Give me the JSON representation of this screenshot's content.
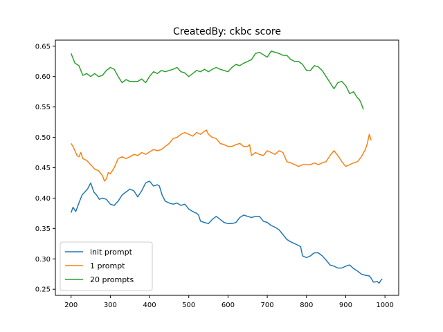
{
  "chart_data": {
    "type": "line",
    "title": "CreatedBy: ckbc score",
    "xlabel": "",
    "ylabel": "",
    "xlim": [
      160,
      1035
    ],
    "ylim": [
      0.24,
      0.66
    ],
    "xticks": [
      200,
      300,
      400,
      500,
      600,
      700,
      800,
      900,
      1000
    ],
    "yticks": [
      0.25,
      0.3,
      0.35,
      0.4,
      0.45,
      0.5,
      0.55,
      0.6,
      0.65
    ],
    "ytick_labels": [
      "0.25",
      "0.30",
      "0.35",
      "0.40",
      "0.45",
      "0.50",
      "0.55",
      "0.60",
      "0.65"
    ],
    "grid": false,
    "legend_position": "lower-left",
    "series": [
      {
        "name": "init prompt",
        "color": "#1f77b4",
        "points": [
          [
            200,
            0.376
          ],
          [
            205,
            0.385
          ],
          [
            212,
            0.378
          ],
          [
            220,
            0.392
          ],
          [
            228,
            0.405
          ],
          [
            235,
            0.41
          ],
          [
            242,
            0.415
          ],
          [
            250,
            0.425
          ],
          [
            258,
            0.41
          ],
          [
            265,
            0.405
          ],
          [
            272,
            0.398
          ],
          [
            280,
            0.4
          ],
          [
            290,
            0.398
          ],
          [
            300,
            0.39
          ],
          [
            310,
            0.388
          ],
          [
            320,
            0.395
          ],
          [
            330,
            0.405
          ],
          [
            340,
            0.41
          ],
          [
            350,
            0.415
          ],
          [
            360,
            0.412
          ],
          [
            370,
            0.402
          ],
          [
            380,
            0.412
          ],
          [
            390,
            0.425
          ],
          [
            400,
            0.428
          ],
          [
            410,
            0.42
          ],
          [
            420,
            0.422
          ],
          [
            425,
            0.42
          ],
          [
            432,
            0.405
          ],
          [
            440,
            0.395
          ],
          [
            450,
            0.392
          ],
          [
            460,
            0.39
          ],
          [
            470,
            0.392
          ],
          [
            480,
            0.388
          ],
          [
            490,
            0.39
          ],
          [
            500,
            0.382
          ],
          [
            510,
            0.378
          ],
          [
            520,
            0.375
          ],
          [
            525,
            0.372
          ],
          [
            530,
            0.362
          ],
          [
            540,
            0.36
          ],
          [
            550,
            0.358
          ],
          [
            560,
            0.365
          ],
          [
            570,
            0.37
          ],
          [
            580,
            0.365
          ],
          [
            590,
            0.36
          ],
          [
            600,
            0.358
          ],
          [
            610,
            0.358
          ],
          [
            620,
            0.36
          ],
          [
            630,
            0.368
          ],
          [
            640,
            0.372
          ],
          [
            650,
            0.37
          ],
          [
            660,
            0.368
          ],
          [
            670,
            0.37
          ],
          [
            680,
            0.37
          ],
          [
            690,
            0.362
          ],
          [
            700,
            0.36
          ],
          [
            710,
            0.355
          ],
          [
            720,
            0.352
          ],
          [
            730,
            0.348
          ],
          [
            740,
            0.34
          ],
          [
            750,
            0.332
          ],
          [
            760,
            0.328
          ],
          [
            770,
            0.325
          ],
          [
            780,
            0.322
          ],
          [
            785,
            0.32
          ],
          [
            790,
            0.305
          ],
          [
            800,
            0.302
          ],
          [
            810,
            0.305
          ],
          [
            820,
            0.31
          ],
          [
            830,
            0.31
          ],
          [
            840,
            0.305
          ],
          [
            850,
            0.298
          ],
          [
            860,
            0.29
          ],
          [
            870,
            0.288
          ],
          [
            880,
            0.285
          ],
          [
            890,
            0.285
          ],
          [
            900,
            0.288
          ],
          [
            910,
            0.29
          ],
          [
            920,
            0.284
          ],
          [
            930,
            0.28
          ],
          [
            940,
            0.275
          ],
          [
            950,
            0.273
          ],
          [
            960,
            0.272
          ],
          [
            965,
            0.268
          ],
          [
            970,
            0.262
          ],
          [
            975,
            0.262
          ],
          [
            980,
            0.263
          ],
          [
            985,
            0.26
          ],
          [
            990,
            0.265
          ],
          [
            993,
            0.267
          ]
        ]
      },
      {
        "name": "1 prompt",
        "color": "#ff7f0e",
        "points": [
          [
            200,
            0.49
          ],
          [
            205,
            0.485
          ],
          [
            210,
            0.478
          ],
          [
            215,
            0.47
          ],
          [
            220,
            0.468
          ],
          [
            225,
            0.475
          ],
          [
            230,
            0.465
          ],
          [
            240,
            0.462
          ],
          [
            250,
            0.455
          ],
          [
            260,
            0.448
          ],
          [
            270,
            0.445
          ],
          [
            280,
            0.437
          ],
          [
            285,
            0.428
          ],
          [
            290,
            0.432
          ],
          [
            295,
            0.442
          ],
          [
            300,
            0.44
          ],
          [
            310,
            0.45
          ],
          [
            320,
            0.465
          ],
          [
            330,
            0.468
          ],
          [
            340,
            0.465
          ],
          [
            350,
            0.468
          ],
          [
            360,
            0.472
          ],
          [
            370,
            0.47
          ],
          [
            380,
            0.475
          ],
          [
            390,
            0.472
          ],
          [
            400,
            0.476
          ],
          [
            410,
            0.48
          ],
          [
            420,
            0.478
          ],
          [
            430,
            0.48
          ],
          [
            440,
            0.485
          ],
          [
            450,
            0.49
          ],
          [
            460,
            0.498
          ],
          [
            470,
            0.5
          ],
          [
            480,
            0.505
          ],
          [
            490,
            0.508
          ],
          [
            500,
            0.505
          ],
          [
            510,
            0.502
          ],
          [
            520,
            0.508
          ],
          [
            530,
            0.505
          ],
          [
            540,
            0.51
          ],
          [
            545,
            0.512
          ],
          [
            550,
            0.505
          ],
          [
            560,
            0.5
          ],
          [
            570,
            0.498
          ],
          [
            580,
            0.49
          ],
          [
            590,
            0.488
          ],
          [
            600,
            0.485
          ],
          [
            610,
            0.485
          ],
          [
            620,
            0.488
          ],
          [
            630,
            0.49
          ],
          [
            640,
            0.485
          ],
          [
            650,
            0.485
          ],
          [
            655,
            0.488
          ],
          [
            660,
            0.47
          ],
          [
            670,
            0.475
          ],
          [
            680,
            0.472
          ],
          [
            690,
            0.47
          ],
          [
            700,
            0.478
          ],
          [
            710,
            0.475
          ],
          [
            720,
            0.472
          ],
          [
            730,
            0.478
          ],
          [
            740,
            0.475
          ],
          [
            750,
            0.46
          ],
          [
            760,
            0.458
          ],
          [
            770,
            0.455
          ],
          [
            780,
            0.452
          ],
          [
            790,
            0.455
          ],
          [
            800,
            0.455
          ],
          [
            810,
            0.455
          ],
          [
            820,
            0.458
          ],
          [
            830,
            0.455
          ],
          [
            840,
            0.458
          ],
          [
            850,
            0.46
          ],
          [
            860,
            0.47
          ],
          [
            870,
            0.478
          ],
          [
            880,
            0.47
          ],
          [
            890,
            0.46
          ],
          [
            900,
            0.452
          ],
          [
            910,
            0.455
          ],
          [
            920,
            0.458
          ],
          [
            930,
            0.46
          ],
          [
            940,
            0.468
          ],
          [
            950,
            0.48
          ],
          [
            955,
            0.49
          ],
          [
            960,
            0.505
          ],
          [
            965,
            0.495
          ]
        ]
      },
      {
        "name": "20 prompts",
        "color": "#2ca02c",
        "points": [
          [
            200,
            0.638
          ],
          [
            205,
            0.63
          ],
          [
            210,
            0.622
          ],
          [
            215,
            0.62
          ],
          [
            220,
            0.618
          ],
          [
            225,
            0.61
          ],
          [
            230,
            0.602
          ],
          [
            240,
            0.605
          ],
          [
            250,
            0.6
          ],
          [
            260,
            0.605
          ],
          [
            270,
            0.6
          ],
          [
            280,
            0.602
          ],
          [
            290,
            0.61
          ],
          [
            300,
            0.615
          ],
          [
            310,
            0.612
          ],
          [
            320,
            0.6
          ],
          [
            330,
            0.59
          ],
          [
            340,
            0.595
          ],
          [
            350,
            0.592
          ],
          [
            360,
            0.592
          ],
          [
            370,
            0.592
          ],
          [
            380,
            0.596
          ],
          [
            390,
            0.59
          ],
          [
            400,
            0.6
          ],
          [
            410,
            0.608
          ],
          [
            420,
            0.605
          ],
          [
            430,
            0.61
          ],
          [
            440,
            0.608
          ],
          [
            450,
            0.61
          ],
          [
            460,
            0.612
          ],
          [
            470,
            0.615
          ],
          [
            480,
            0.608
          ],
          [
            490,
            0.606
          ],
          [
            500,
            0.6
          ],
          [
            510,
            0.605
          ],
          [
            520,
            0.61
          ],
          [
            530,
            0.608
          ],
          [
            540,
            0.612
          ],
          [
            550,
            0.608
          ],
          [
            560,
            0.612
          ],
          [
            570,
            0.615
          ],
          [
            580,
            0.612
          ],
          [
            590,
            0.61
          ],
          [
            600,
            0.608
          ],
          [
            610,
            0.615
          ],
          [
            620,
            0.62
          ],
          [
            630,
            0.618
          ],
          [
            640,
            0.622
          ],
          [
            650,
            0.625
          ],
          [
            660,
            0.628
          ],
          [
            670,
            0.638
          ],
          [
            680,
            0.64
          ],
          [
            690,
            0.636
          ],
          [
            700,
            0.632
          ],
          [
            710,
            0.642
          ],
          [
            720,
            0.64
          ],
          [
            730,
            0.638
          ],
          [
            740,
            0.635
          ],
          [
            750,
            0.635
          ],
          [
            760,
            0.628
          ],
          [
            770,
            0.625
          ],
          [
            780,
            0.625
          ],
          [
            790,
            0.62
          ],
          [
            800,
            0.61
          ],
          [
            810,
            0.61
          ],
          [
            820,
            0.618
          ],
          [
            830,
            0.616
          ],
          [
            840,
            0.61
          ],
          [
            850,
            0.6
          ],
          [
            860,
            0.59
          ],
          [
            870,
            0.58
          ],
          [
            880,
            0.59
          ],
          [
            890,
            0.592
          ],
          [
            900,
            0.585
          ],
          [
            910,
            0.572
          ],
          [
            920,
            0.575
          ],
          [
            930,
            0.565
          ],
          [
            935,
            0.562
          ],
          [
            940,
            0.555
          ],
          [
            945,
            0.546
          ]
        ]
      }
    ]
  }
}
